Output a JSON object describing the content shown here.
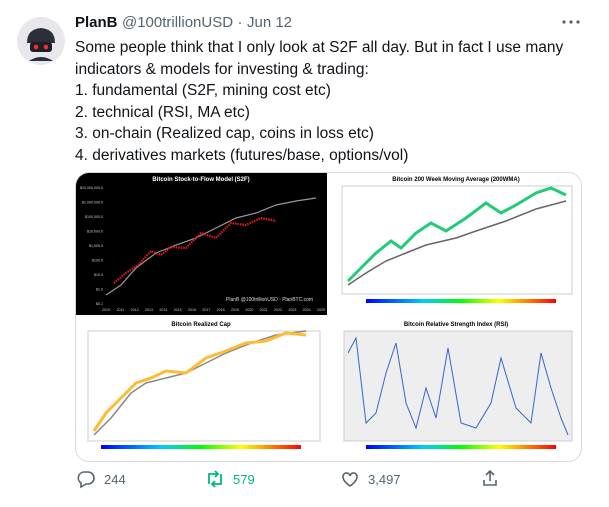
{
  "tweet": {
    "name": "PlanB",
    "handle": "@100trillionUSD",
    "separator": "·",
    "date": "Jun 12",
    "lines": [
      "Some people think that I only look at S2F all day. But in fact I use many",
      "indicators & models for investing & trading:",
      "1. fundamental (S2F, mining cost etc)",
      "2. technical (RSI, MA etc)",
      "3. on-chain (Realized cap, coins in loss etc)",
      "4. derivatives markets (futures/base, options/vol)"
    ],
    "images": [
      {
        "title": "Bitcoin Stock-to-Flow Model (S2F)",
        "watermark": "PlanB @100trillionUSD - PlanBTC.com",
        "yticks": [
          "$10,000,000.0",
          "$1,000,000.0",
          "$100,000.0",
          "$10,000.0",
          "$1,000.0",
          "$100.0",
          "$10.0",
          "$1.0",
          "$0.1"
        ],
        "xticks": [
          "2010",
          "2011",
          "2012",
          "2013",
          "2014",
          "2015",
          "2016",
          "2017",
          "2018",
          "2019",
          "2020",
          "2021",
          "2022",
          "2023",
          "2024",
          "2025"
        ]
      },
      {
        "title": "Bitcoin 200 Week Moving Average (200WMA)"
      },
      {
        "title": "Bitcoin Realized Cap"
      },
      {
        "title": "Bitcoin Relative Strength Index (RSI)"
      }
    ],
    "replies": "244",
    "retweets": "579",
    "likes": "3,497"
  }
}
